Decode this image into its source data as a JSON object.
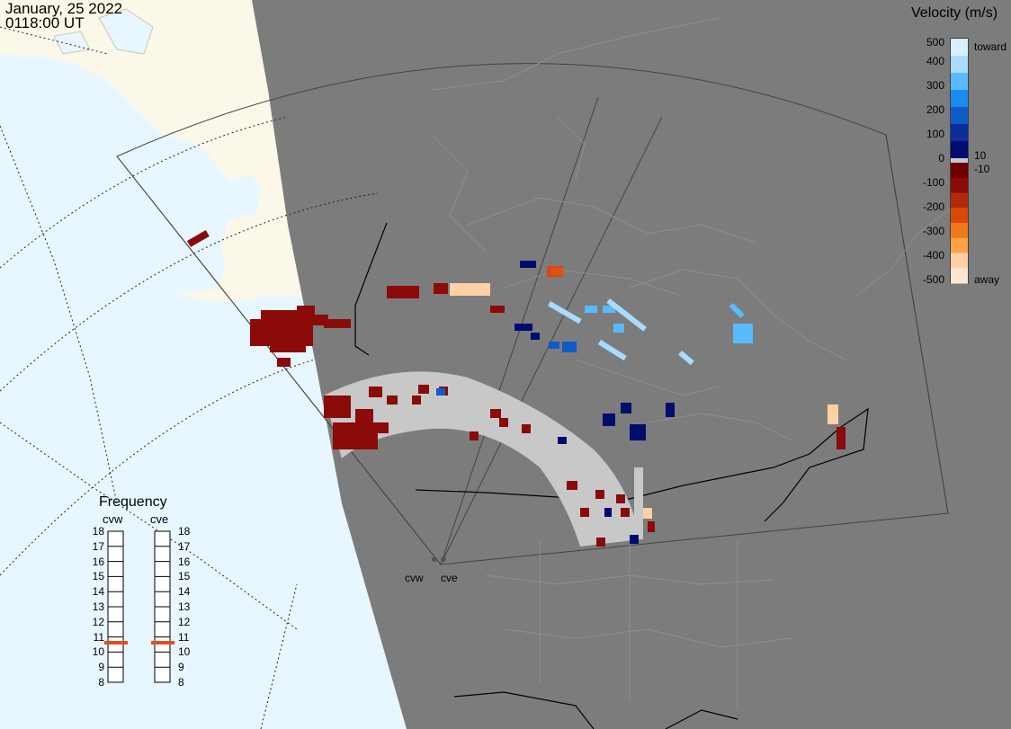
{
  "header": {
    "date": "January, 25 2022",
    "time": "0118:00 UT"
  },
  "velocity_legend": {
    "title": "Velocity (m/s)",
    "ticks": [
      "500",
      "400",
      "300",
      "200",
      "100",
      "10",
      "0",
      "-10",
      "-100",
      "-200",
      "-300",
      "-400",
      "-500"
    ],
    "toward_label": "toward",
    "away_label": "away",
    "colors": {
      "toward": [
        "#d7efff",
        "#a8dbff",
        "#58baff",
        "#1a8cf0",
        "#0f5cc8",
        "#0a2f9a",
        "#000d6e"
      ],
      "away": [
        "#6e0000",
        "#8b0a0a",
        "#b32a0a",
        "#d94a0a",
        "#f07a1a",
        "#fda24a",
        "#ffcfa6",
        "#ffe6d3"
      ],
      "ground_scatter": "#c8c8c8"
    }
  },
  "frequency_panel": {
    "title": "Frequency",
    "radars": [
      {
        "name": "cvw",
        "value_mhz": 10.8
      },
      {
        "name": "cve",
        "value_mhz": 10.8
      }
    ],
    "scale": [
      "18",
      "17",
      "16",
      "15",
      "14",
      "13",
      "12",
      "11",
      "10",
      "9",
      "8"
    ],
    "marker_color": "#e0501a"
  },
  "sites": [
    "cvw",
    "cve"
  ],
  "map_colors": {
    "ocean": "#e8f6ff",
    "land_day": "#fbf8ea",
    "night": "#7c7c7c",
    "borders": "#9a9a9a"
  }
}
